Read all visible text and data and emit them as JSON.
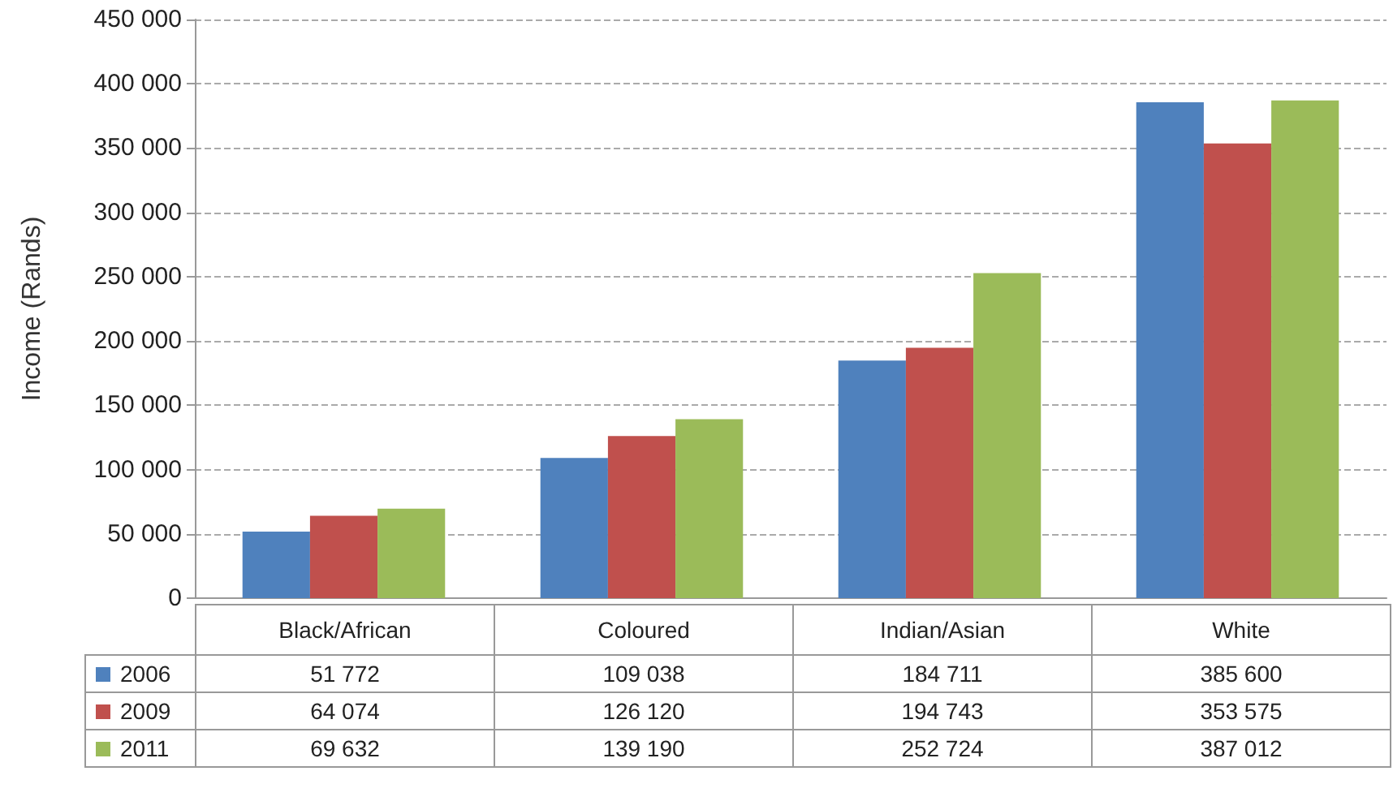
{
  "chart_data": {
    "type": "bar",
    "ylabel": "Income (Rands)",
    "categories": [
      "Black/African",
      "Coloured",
      "Indian/Asian",
      "White"
    ],
    "series": [
      {
        "name": "2006",
        "color": "#4f81bd",
        "values": [
          51772,
          109038,
          184711,
          385600
        ]
      },
      {
        "name": "2009",
        "color": "#c0504d",
        "values": [
          64074,
          126120,
          194743,
          353575
        ]
      },
      {
        "name": "2011",
        "color": "#9bbb59",
        "values": [
          69632,
          139190,
          252724,
          387012
        ]
      }
    ],
    "ylim": [
      0,
      450000
    ],
    "yticks": [
      {
        "value": 0,
        "label": "0"
      },
      {
        "value": 50000,
        "label": "50 000"
      },
      {
        "value": 100000,
        "label": "100 000"
      },
      {
        "value": 150000,
        "label": "150 000"
      },
      {
        "value": 200000,
        "label": "200 000"
      },
      {
        "value": 250000,
        "label": "250 000"
      },
      {
        "value": 300000,
        "label": "300 000"
      },
      {
        "value": 350000,
        "label": "350 000"
      },
      {
        "value": 400000,
        "label": "400 000"
      },
      {
        "value": 450000,
        "label": "450 000"
      }
    ],
    "grid": "y",
    "legend": "bottom",
    "data_labels": true
  }
}
